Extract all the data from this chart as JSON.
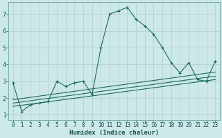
{
  "title": "",
  "xlabel": "Humidex (Indice chaleur)",
  "bg_color": "#cce8e8",
  "grid_color": "#b8d4d4",
  "line_color": "#1a6b5a",
  "xlim": [
    -0.5,
    23.5
  ],
  "ylim": [
    0.7,
    7.7
  ],
  "xticks": [
    0,
    1,
    2,
    3,
    4,
    5,
    6,
    7,
    8,
    9,
    10,
    11,
    12,
    13,
    14,
    15,
    16,
    17,
    18,
    19,
    20,
    21,
    22,
    23
  ],
  "yticks": [
    1,
    2,
    3,
    4,
    5,
    6,
    7
  ],
  "series": [
    [
      0,
      2.9
    ],
    [
      1,
      1.2
    ],
    [
      2,
      1.6
    ],
    [
      3,
      1.7
    ],
    [
      4,
      1.8
    ],
    [
      5,
      3.0
    ],
    [
      6,
      2.7
    ],
    [
      7,
      2.9
    ],
    [
      8,
      3.0
    ],
    [
      9,
      2.2
    ],
    [
      10,
      5.0
    ],
    [
      11,
      7.0
    ],
    [
      12,
      7.2
    ],
    [
      13,
      7.4
    ],
    [
      14,
      6.7
    ],
    [
      15,
      6.3
    ],
    [
      16,
      5.8
    ],
    [
      17,
      5.0
    ],
    [
      18,
      4.1
    ],
    [
      19,
      3.5
    ],
    [
      20,
      4.1
    ],
    [
      21,
      3.1
    ],
    [
      22,
      3.0
    ],
    [
      23,
      4.2
    ]
  ],
  "linear_series": [
    [
      [
        0,
        1.5
      ],
      [
        23,
        3.1
      ]
    ],
    [
      [
        0,
        1.7
      ],
      [
        23,
        3.3
      ]
    ],
    [
      [
        0,
        1.9
      ],
      [
        23,
        3.55
      ]
    ]
  ],
  "xlabel_fontsize": 6.5,
  "tick_fontsize": 5.5
}
